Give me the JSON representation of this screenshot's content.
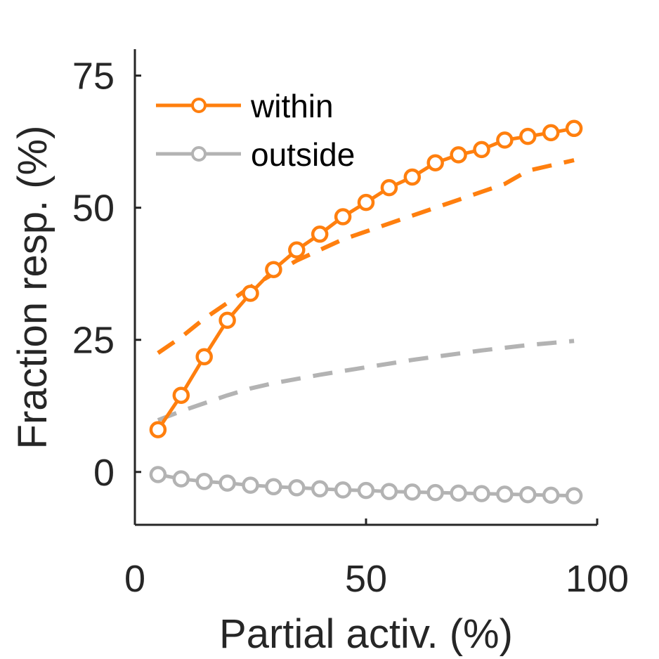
{
  "chart_data": {
    "type": "line",
    "xlabel": "Partial activ. (%)",
    "ylabel": "Fraction resp. (%)",
    "xlim": [
      0,
      100
    ],
    "ylim": [
      -10,
      80
    ],
    "xticks": [
      0,
      50,
      100
    ],
    "yticks": [
      0,
      25,
      50,
      75
    ],
    "x": [
      5,
      10,
      15,
      20,
      25,
      30,
      35,
      40,
      45,
      50,
      55,
      60,
      65,
      70,
      75,
      80,
      85,
      90,
      95
    ],
    "series": [
      {
        "name": "within",
        "color": "#FF7F0E",
        "style": "solid-circle-markers",
        "values": [
          8,
          14.5,
          21.8,
          28.7,
          33.8,
          38.3,
          42,
          45,
          48.3,
          51,
          53.8,
          55.8,
          58.5,
          60,
          61,
          62.8,
          63.5,
          64.2,
          65
        ]
      },
      {
        "name": "outside",
        "color": "#B3B3B3",
        "style": "solid-circle-markers",
        "values": [
          -0.5,
          -1.3,
          -1.8,
          -2.1,
          -2.5,
          -2.8,
          -3.0,
          -3.2,
          -3.4,
          -3.5,
          -3.7,
          -3.8,
          -3.9,
          -4.0,
          -4.1,
          -4.2,
          -4.3,
          -4.4,
          -4.5
        ]
      },
      {
        "color": "#FF7F0E",
        "style": "dashed",
        "values": [
          22.5,
          25.5,
          29,
          32,
          35,
          37.5,
          40,
          42,
          44,
          45.5,
          47,
          48.5,
          50,
          51.5,
          53,
          54.5,
          57,
          58,
          59
        ]
      },
      {
        "color": "#B3B3B3",
        "style": "dashed",
        "values": [
          9.8,
          11.5,
          13,
          14.5,
          15.8,
          16.8,
          17.6,
          18.4,
          19.1,
          19.8,
          20.5,
          21.2,
          21.8,
          22.4,
          23,
          23.5,
          24,
          24.4,
          24.8
        ]
      }
    ],
    "legend": {
      "position": "top-left",
      "entries": [
        {
          "label": "within",
          "color": "#FF7F0E"
        },
        {
          "label": "outside",
          "color": "#B3B3B3"
        }
      ]
    },
    "grid": false
  }
}
